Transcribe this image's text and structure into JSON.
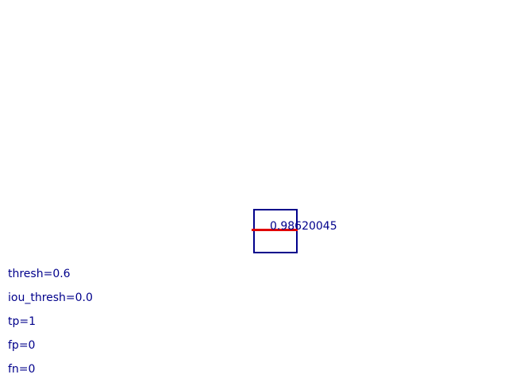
{
  "detection": {
    "score": "0.98620045",
    "box_color": "#00008b",
    "gt_color": "#e00000"
  },
  "stats": [
    "thresh=0.6",
    "iou_thresh=0.0",
    "tp=1",
    "fp=0",
    "fn=0"
  ],
  "text_color": "#00008b"
}
